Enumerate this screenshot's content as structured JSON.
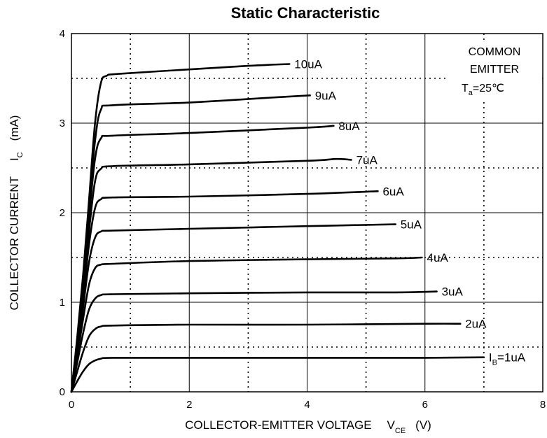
{
  "chart_data": {
    "type": "line",
    "title": "Static Characteristic",
    "xlabel": {
      "main": "COLLECTOR-EMITTER VOLTAGE",
      "symbol": "V",
      "subscript": "CE",
      "unit": "(V)"
    },
    "ylabel": {
      "main": "COLLECTOR CURRENT",
      "symbol": "I",
      "subscript": "C",
      "unit": "(mA)"
    },
    "xlim": [
      0,
      8
    ],
    "ylim": [
      0,
      4
    ],
    "x_ticks": [
      "0",
      "2",
      "4",
      "6",
      "8"
    ],
    "y_ticks": [
      "0",
      "1",
      "2",
      "3",
      "4"
    ],
    "grid": {
      "major": true,
      "minor_dotted": true
    },
    "annotation": {
      "line1": "COMMON",
      "line2": "EMITTER",
      "line3_symbol": "T",
      "line3_subscript": "a",
      "line3_value": "=25℃"
    },
    "series": [
      {
        "name": "1uA",
        "label_prefix": "I",
        "label_subscript": "B",
        "label_rest": "=1uA",
        "points": [
          [
            0,
            0
          ],
          [
            0.1,
            0.12
          ],
          [
            0.2,
            0.23
          ],
          [
            0.3,
            0.31
          ],
          [
            0.4,
            0.35
          ],
          [
            0.5,
            0.37
          ],
          [
            0.7,
            0.38
          ],
          [
            2,
            0.38
          ],
          [
            4,
            0.38
          ],
          [
            6,
            0.38
          ],
          [
            7,
            0.385
          ]
        ]
      },
      {
        "name": "2uA",
        "points": [
          [
            0,
            0
          ],
          [
            0.1,
            0.23
          ],
          [
            0.2,
            0.45
          ],
          [
            0.3,
            0.62
          ],
          [
            0.4,
            0.7
          ],
          [
            0.5,
            0.73
          ],
          [
            0.7,
            0.74
          ],
          [
            2,
            0.75
          ],
          [
            4,
            0.75
          ],
          [
            6,
            0.76
          ],
          [
            6.6,
            0.76
          ]
        ]
      },
      {
        "name": "3uA",
        "points": [
          [
            0,
            0
          ],
          [
            0.1,
            0.33
          ],
          [
            0.2,
            0.66
          ],
          [
            0.3,
            0.92
          ],
          [
            0.4,
            1.04
          ],
          [
            0.5,
            1.08
          ],
          [
            0.7,
            1.09
          ],
          [
            2,
            1.1
          ],
          [
            4,
            1.11
          ],
          [
            5.5,
            1.11
          ],
          [
            6.2,
            1.12
          ]
        ]
      },
      {
        "name": "4uA",
        "points": [
          [
            0,
            0
          ],
          [
            0.1,
            0.4
          ],
          [
            0.2,
            0.82
          ],
          [
            0.3,
            1.2
          ],
          [
            0.4,
            1.38
          ],
          [
            0.5,
            1.42
          ],
          [
            0.7,
            1.43
          ],
          [
            2,
            1.46
          ],
          [
            4,
            1.48
          ],
          [
            5.5,
            1.49
          ],
          [
            5.95,
            1.5
          ]
        ]
      },
      {
        "name": "5uA",
        "points": [
          [
            0,
            0
          ],
          [
            0.1,
            0.45
          ],
          [
            0.2,
            0.95
          ],
          [
            0.3,
            1.45
          ],
          [
            0.4,
            1.72
          ],
          [
            0.5,
            1.79
          ],
          [
            0.7,
            1.8
          ],
          [
            2,
            1.82
          ],
          [
            4,
            1.85
          ],
          [
            5.5,
            1.87
          ]
        ]
      },
      {
        "name": "6uA",
        "points": [
          [
            0,
            0
          ],
          [
            0.1,
            0.5
          ],
          [
            0.2,
            1.05
          ],
          [
            0.3,
            1.65
          ],
          [
            0.4,
            2.05
          ],
          [
            0.5,
            2.15
          ],
          [
            0.7,
            2.17
          ],
          [
            2,
            2.18
          ],
          [
            4,
            2.21
          ],
          [
            5.2,
            2.24
          ]
        ]
      },
      {
        "name": "7uA",
        "points": [
          [
            0,
            0
          ],
          [
            0.1,
            0.55
          ],
          [
            0.2,
            1.15
          ],
          [
            0.3,
            1.8
          ],
          [
            0.4,
            2.35
          ],
          [
            0.5,
            2.49
          ],
          [
            0.7,
            2.52
          ],
          [
            2,
            2.54
          ],
          [
            4,
            2.58
          ],
          [
            4.5,
            2.6
          ],
          [
            4.75,
            2.59
          ]
        ]
      },
      {
        "name": "8uA",
        "points": [
          [
            0,
            0
          ],
          [
            0.1,
            0.58
          ],
          [
            0.2,
            1.22
          ],
          [
            0.3,
            1.95
          ],
          [
            0.4,
            2.6
          ],
          [
            0.5,
            2.83
          ],
          [
            0.7,
            2.86
          ],
          [
            2,
            2.89
          ],
          [
            4,
            2.95
          ],
          [
            4.45,
            2.97
          ]
        ]
      },
      {
        "name": "9uA",
        "points": [
          [
            0,
            0
          ],
          [
            0.1,
            0.6
          ],
          [
            0.2,
            1.28
          ],
          [
            0.3,
            2.05
          ],
          [
            0.4,
            2.8
          ],
          [
            0.5,
            3.15
          ],
          [
            0.7,
            3.2
          ],
          [
            2,
            3.23
          ],
          [
            3.5,
            3.29
          ],
          [
            4.05,
            3.31
          ]
        ]
      },
      {
        "name": "10uA",
        "points": [
          [
            0,
            0
          ],
          [
            0.1,
            0.62
          ],
          [
            0.2,
            1.32
          ],
          [
            0.3,
            2.15
          ],
          [
            0.4,
            3.0
          ],
          [
            0.5,
            3.45
          ],
          [
            0.6,
            3.53
          ],
          [
            0.8,
            3.55
          ],
          [
            2,
            3.6
          ],
          [
            3,
            3.64
          ],
          [
            3.7,
            3.66
          ]
        ]
      }
    ]
  }
}
